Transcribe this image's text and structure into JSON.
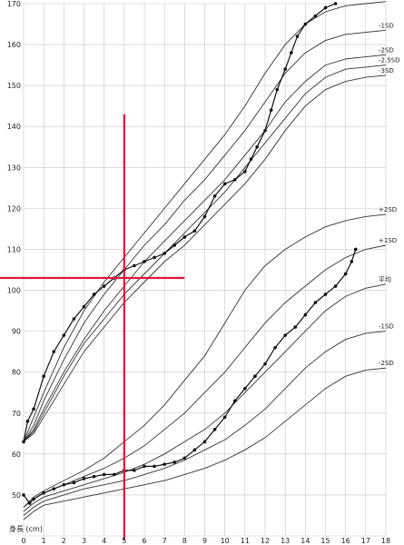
{
  "chart_data": {
    "type": "line",
    "ylabel": "身長 (cm)",
    "xlim": [
      0,
      18
    ],
    "ylim": [
      40,
      170
    ],
    "x_ticks": [
      "0",
      "1",
      "2",
      "3",
      "4",
      "5",
      "6",
      "7",
      "8",
      "9",
      "10",
      "11",
      "12",
      "13",
      "14",
      "15",
      "16",
      "17",
      "18"
    ],
    "y_ticks": [
      "50",
      "60",
      "70",
      "80",
      "90",
      "100",
      "110",
      "120",
      "130",
      "140",
      "150",
      "160",
      "170"
    ],
    "height_curves": [
      {
        "name": "平均",
        "points": [
          [
            0,
            63
          ],
          [
            0.5,
            69
          ],
          [
            1,
            75
          ],
          [
            2,
            86
          ],
          [
            3,
            95
          ],
          [
            4,
            102
          ],
          [
            5,
            108
          ],
          [
            6,
            114
          ],
          [
            7,
            120
          ],
          [
            8,
            126
          ],
          [
            9,
            132
          ],
          [
            10,
            138
          ],
          [
            11,
            145
          ],
          [
            12,
            153
          ],
          [
            13,
            160
          ],
          [
            14,
            165
          ],
          [
            15,
            168
          ],
          [
            16,
            169.5
          ],
          [
            17,
            170
          ],
          [
            18,
            170.5
          ]
        ]
      },
      {
        "name": "-1SD",
        "points": [
          [
            0,
            63
          ],
          [
            0.5,
            67
          ],
          [
            1,
            73
          ],
          [
            2,
            83
          ],
          [
            3,
            92
          ],
          [
            4,
            99
          ],
          [
            5,
            105
          ],
          [
            6,
            111
          ],
          [
            7,
            116
          ],
          [
            8,
            122
          ],
          [
            9,
            127
          ],
          [
            10,
            133
          ],
          [
            11,
            139
          ],
          [
            12,
            146
          ],
          [
            13,
            153
          ],
          [
            14,
            158
          ],
          [
            15,
            161
          ],
          [
            16,
            162.5
          ],
          [
            17,
            163
          ],
          [
            18,
            163.5
          ]
        ]
      },
      {
        "name": "-2SD",
        "points": [
          [
            0,
            63
          ],
          [
            0.5,
            66
          ],
          [
            1,
            71
          ],
          [
            2,
            80
          ],
          [
            3,
            88
          ],
          [
            4,
            95
          ],
          [
            5,
            101
          ],
          [
            6,
            107
          ],
          [
            7,
            112
          ],
          [
            8,
            117
          ],
          [
            9,
            122
          ],
          [
            10,
            127
          ],
          [
            11,
            133
          ],
          [
            12,
            139
          ],
          [
            13,
            146
          ],
          [
            14,
            151
          ],
          [
            15,
            155
          ],
          [
            16,
            156.5
          ],
          [
            17,
            157
          ],
          [
            18,
            157.5
          ]
        ]
      },
      {
        "name": "-2.5SD",
        "points": [
          [
            0,
            63
          ],
          [
            0.5,
            65.5
          ],
          [
            1,
            70
          ],
          [
            2,
            79
          ],
          [
            3,
            87
          ],
          [
            4,
            93
          ],
          [
            5,
            99
          ],
          [
            6,
            104
          ],
          [
            7,
            109
          ],
          [
            8,
            114
          ],
          [
            9,
            119
          ],
          [
            10,
            124
          ],
          [
            11,
            130
          ],
          [
            12,
            136
          ],
          [
            13,
            142
          ],
          [
            14,
            148
          ],
          [
            15,
            152
          ],
          [
            16,
            154
          ],
          [
            17,
            154.5
          ],
          [
            18,
            155
          ]
        ]
      },
      {
        "name": "-3SD",
        "points": [
          [
            0,
            63
          ],
          [
            0.5,
            65
          ],
          [
            1,
            69
          ],
          [
            2,
            77
          ],
          [
            3,
            85
          ],
          [
            4,
            91
          ],
          [
            5,
            97
          ],
          [
            6,
            102
          ],
          [
            7,
            107
          ],
          [
            8,
            111
          ],
          [
            9,
            116
          ],
          [
            10,
            121
          ],
          [
            11,
            126
          ],
          [
            12,
            132
          ],
          [
            13,
            139
          ],
          [
            14,
            145
          ],
          [
            15,
            149
          ],
          [
            16,
            151
          ],
          [
            17,
            152
          ],
          [
            18,
            152.5
          ]
        ]
      }
    ],
    "weight_curves": [
      {
        "name": "+2SD",
        "points": [
          [
            0,
            47
          ],
          [
            0.5,
            49.5
          ],
          [
            1,
            51
          ],
          [
            2,
            53.5
          ],
          [
            3,
            56
          ],
          [
            4,
            59
          ],
          [
            5,
            63
          ],
          [
            6,
            67
          ],
          [
            7,
            72
          ],
          [
            8,
            78
          ],
          [
            9,
            84
          ],
          [
            10,
            92
          ],
          [
            11,
            100
          ],
          [
            12,
            106
          ],
          [
            13,
            110
          ],
          [
            14,
            113
          ],
          [
            15,
            115.5
          ],
          [
            16,
            117
          ],
          [
            17,
            118
          ],
          [
            18,
            118.5
          ]
        ]
      },
      {
        "name": "+1SD",
        "points": [
          [
            0,
            47
          ],
          [
            0.5,
            49
          ],
          [
            1,
            50.5
          ],
          [
            2,
            52.5
          ],
          [
            3,
            54.5
          ],
          [
            4,
            56.5
          ],
          [
            5,
            59
          ],
          [
            6,
            62
          ],
          [
            7,
            66
          ],
          [
            8,
            70
          ],
          [
            9,
            75
          ],
          [
            10,
            80
          ],
          [
            11,
            86
          ],
          [
            12,
            92
          ],
          [
            13,
            97
          ],
          [
            14,
            101
          ],
          [
            15,
            105
          ],
          [
            16,
            108
          ],
          [
            17,
            110
          ],
          [
            18,
            111
          ]
        ]
      },
      {
        "name": "平均",
        "points": [
          [
            0,
            46
          ],
          [
            0.5,
            48
          ],
          [
            1,
            49.5
          ],
          [
            2,
            51
          ],
          [
            3,
            52.5
          ],
          [
            4,
            54
          ],
          [
            5,
            55.5
          ],
          [
            6,
            57.5
          ],
          [
            7,
            60
          ],
          [
            8,
            63
          ],
          [
            9,
            66
          ],
          [
            10,
            70
          ],
          [
            11,
            75
          ],
          [
            12,
            80
          ],
          [
            13,
            85
          ],
          [
            14,
            90
          ],
          [
            15,
            95
          ],
          [
            16,
            98.5
          ],
          [
            17,
            100.5
          ],
          [
            18,
            101.5
          ]
        ]
      },
      {
        "name": "-1SD",
        "points": [
          [
            0,
            45
          ],
          [
            0.5,
            47
          ],
          [
            1,
            48.5
          ],
          [
            2,
            50
          ],
          [
            3,
            51.5
          ],
          [
            4,
            52.5
          ],
          [
            5,
            53.5
          ],
          [
            6,
            55
          ],
          [
            7,
            56.5
          ],
          [
            8,
            58.5
          ],
          [
            9,
            61
          ],
          [
            10,
            63.5
          ],
          [
            11,
            67
          ],
          [
            12,
            71
          ],
          [
            13,
            76
          ],
          [
            14,
            81
          ],
          [
            15,
            85
          ],
          [
            16,
            88
          ],
          [
            17,
            89.5
          ],
          [
            18,
            90
          ]
        ]
      },
      {
        "name": "-2SD",
        "points": [
          [
            0,
            44
          ],
          [
            0.5,
            46
          ],
          [
            1,
            47.5
          ],
          [
            2,
            48.5
          ],
          [
            3,
            49.5
          ],
          [
            4,
            50.5
          ],
          [
            5,
            51.5
          ],
          [
            6,
            52.5
          ],
          [
            7,
            53.5
          ],
          [
            8,
            55
          ],
          [
            9,
            56.5
          ],
          [
            10,
            58.5
          ],
          [
            11,
            61
          ],
          [
            12,
            64
          ],
          [
            13,
            68
          ],
          [
            14,
            72
          ],
          [
            15,
            76
          ],
          [
            16,
            79
          ],
          [
            17,
            80.5
          ],
          [
            18,
            81
          ]
        ]
      }
    ],
    "patient_height": [
      [
        0,
        63
      ],
      [
        0.2,
        68
      ],
      [
        0.5,
        71
      ],
      [
        1,
        79
      ],
      [
        1.5,
        85
      ],
      [
        2,
        89
      ],
      [
        2.5,
        93
      ],
      [
        3,
        96
      ],
      [
        3.5,
        99
      ],
      [
        4,
        101
      ],
      [
        4.5,
        103
      ],
      [
        5,
        105
      ],
      [
        5.5,
        106
      ],
      [
        6,
        107
      ],
      [
        6.5,
        108
      ],
      [
        7,
        109
      ],
      [
        7.5,
        111
      ],
      [
        8,
        113
      ],
      [
        8.5,
        114.5
      ],
      [
        9,
        118
      ],
      [
        9.5,
        123
      ],
      [
        10,
        126
      ],
      [
        10.5,
        127
      ],
      [
        11,
        129
      ],
      [
        11.3,
        132
      ],
      [
        11.6,
        135
      ],
      [
        12,
        139
      ],
      [
        12.3,
        144
      ],
      [
        12.6,
        149
      ],
      [
        13,
        154
      ],
      [
        13.3,
        158
      ],
      [
        13.6,
        162
      ],
      [
        14,
        165
      ],
      [
        14.5,
        167
      ],
      [
        15,
        169
      ],
      [
        15.5,
        170
      ]
    ],
    "patient_weight": [
      [
        0,
        50
      ],
      [
        0.3,
        48
      ],
      [
        0.5,
        49
      ],
      [
        1,
        50.5
      ],
      [
        1.5,
        51.5
      ],
      [
        2,
        52.5
      ],
      [
        2.5,
        53
      ],
      [
        3,
        54
      ],
      [
        3.5,
        54.5
      ],
      [
        4,
        55
      ],
      [
        4.5,
        55
      ],
      [
        5,
        56
      ],
      [
        5.5,
        56
      ],
      [
        6,
        57
      ],
      [
        6.5,
        57
      ],
      [
        7,
        57.5
      ],
      [
        7.5,
        58
      ],
      [
        8,
        59
      ],
      [
        8.5,
        61
      ],
      [
        9,
        63
      ],
      [
        9.5,
        66
      ],
      [
        10,
        69
      ],
      [
        10.5,
        73
      ],
      [
        11,
        76
      ],
      [
        11.5,
        79
      ],
      [
        12,
        82
      ],
      [
        12.5,
        86
      ],
      [
        13,
        89
      ],
      [
        13.5,
        91
      ],
      [
        14,
        94
      ],
      [
        14.5,
        97
      ],
      [
        15,
        99
      ],
      [
        15.5,
        101
      ],
      [
        16,
        104
      ],
      [
        16.3,
        107
      ],
      [
        16.5,
        110
      ]
    ],
    "red_crosshair": {
      "x": 5.0,
      "y": 103
    }
  }
}
